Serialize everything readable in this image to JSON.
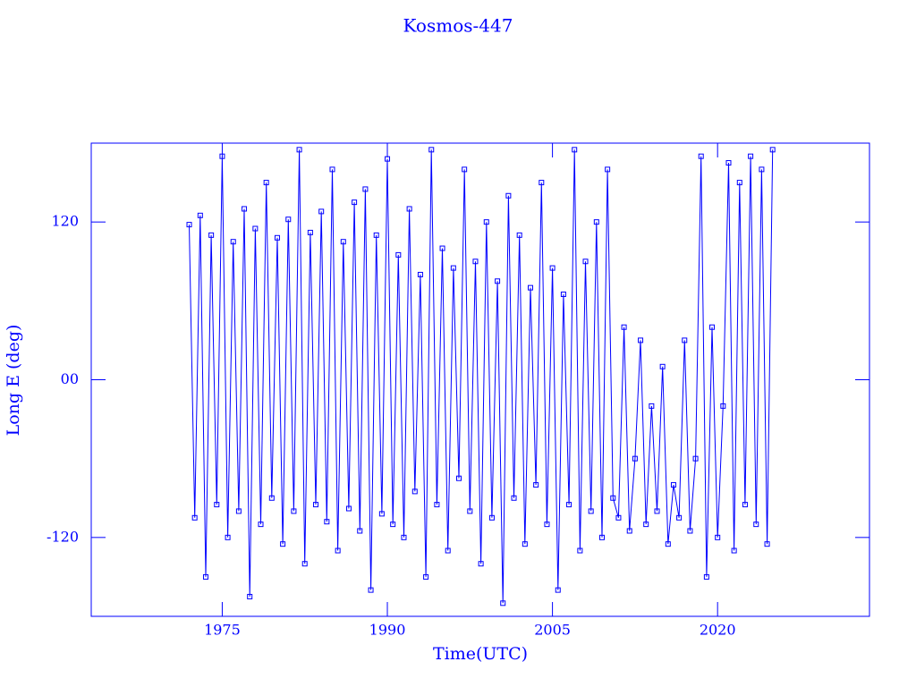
{
  "chart_data": {
    "type": "line",
    "title": "Kosmos-447",
    "x_label": "Time(UTC)",
    "y_label": "Long E (deg)",
    "xlim": [
      1963.1,
      2033.8
    ],
    "xticks": [
      1975,
      1990,
      2005,
      2020
    ],
    "ylim": [
      -180,
      180
    ],
    "yticks": [
      -120,
      {
        "value": 0,
        "label": "00"
      },
      120
    ],
    "color": "#0000ff",
    "marker": "square",
    "x": [
      1972,
      1972.5,
      1973,
      1973.5,
      1974,
      1974.5,
      1975,
      1975.5,
      1976,
      1976.5,
      1977,
      1977.5,
      1978,
      1978.5,
      1979,
      1979.5,
      1980,
      1980.5,
      1981,
      1981.5,
      1982,
      1982.5,
      1983,
      1983.5,
      1984,
      1984.5,
      1985,
      1985.5,
      1986,
      1986.5,
      1987,
      1987.5,
      1988,
      1988.5,
      1989,
      1989.5,
      1990,
      1990.5,
      1991,
      1991.5,
      1992,
      1992.5,
      1993,
      1993.5,
      1994,
      1994.5,
      1995,
      1995.5,
      1996,
      1996.5,
      1997,
      1997.5,
      1998,
      1998.5,
      1999,
      1999.5,
      2000,
      2000.5,
      2001,
      2001.5,
      2002,
      2002.5,
      2003,
      2003.5,
      2004,
      2004.5,
      2005,
      2005.5,
      2006,
      2006.5,
      2007,
      2007.5,
      2008,
      2008.5,
      2009,
      2009.5,
      2010,
      2010.5,
      2011,
      2011.5,
      2012,
      2012.5,
      2013,
      2013.5,
      2014,
      2014.5,
      2015,
      2015.5,
      2016,
      2016.5,
      2017,
      2017.5,
      2018,
      2018.5,
      2019,
      2019.5,
      2020,
      2020.5,
      2021,
      2021.5,
      2022,
      2022.5,
      2023,
      2023.5,
      2024,
      2024.5,
      2025
    ],
    "values": [
      118,
      -105,
      125,
      -150,
      110,
      -95,
      170,
      -120,
      105,
      -100,
      130,
      -165,
      115,
      -110,
      150,
      -90,
      108,
      -125,
      122,
      -100,
      175,
      -140,
      112,
      -95,
      128,
      -108,
      160,
      -130,
      105,
      -98,
      135,
      -115,
      145,
      -160,
      110,
      -102,
      168,
      -110,
      95,
      -120,
      130,
      -85,
      80,
      -150,
      175,
      -95,
      100,
      -130,
      85,
      -75,
      160,
      -100,
      90,
      -140,
      120,
      -105,
      75,
      -170,
      140,
      -90,
      110,
      -125,
      70,
      -80,
      150,
      -110,
      85,
      -160,
      65,
      -95,
      175,
      -130,
      90,
      -100,
      120,
      -120,
      160,
      -90,
      -105,
      40,
      -115,
      -60,
      30,
      -110,
      -20,
      -100,
      10,
      -125,
      -80,
      -105,
      30,
      -115,
      -60,
      170,
      -150,
      40,
      -120,
      -20,
      165,
      -130,
      150,
      -95,
      170,
      -110,
      160,
      -125,
      175
    ]
  }
}
